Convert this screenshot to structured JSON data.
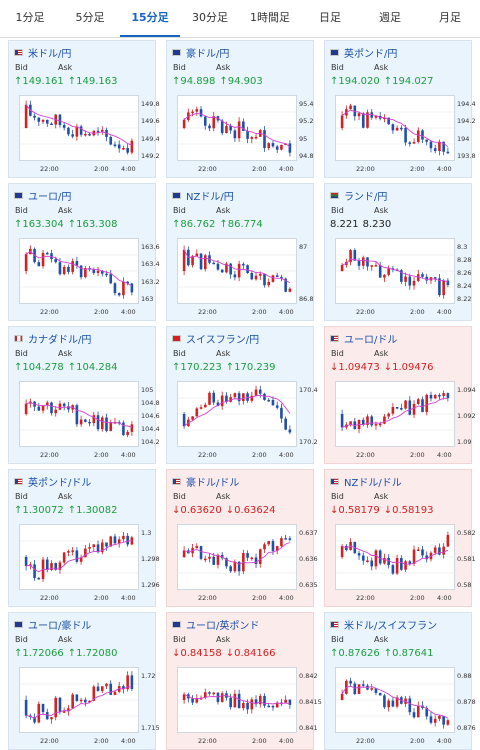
{
  "tabs": [
    {
      "label": "1分足",
      "active": false
    },
    {
      "label": "5分足",
      "active": false
    },
    {
      "label": "15分足",
      "active": true
    },
    {
      "label": "30分足",
      "active": false
    },
    {
      "label": "1時間足",
      "active": false
    },
    {
      "label": "日足",
      "active": false
    },
    {
      "label": "週足",
      "active": false
    },
    {
      "label": "月足",
      "active": false
    }
  ],
  "colors": {
    "up_bg": "#eaf4fd",
    "down_bg": "#fcebeb",
    "candle_up": "#d32020",
    "candle_down": "#1f4fa8",
    "ma_line": "#d640d6",
    "arrow_up": "#1a9e3c",
    "arrow_down": "#d32020",
    "link": "#1b4fa8"
  },
  "cards": [
    {
      "name": "米ドル/円",
      "flag": "us",
      "dir": "up",
      "bid_label": "Bid",
      "ask_label": "Ask",
      "bid": "↑149.161",
      "ask": "↑149.163",
      "x_ticks": [
        "22:00",
        "2:00",
        "4:00"
      ],
      "y_ticks": [
        "149.8",
        "149.6",
        "149.4",
        "149.2"
      ],
      "ylim": [
        149.1,
        149.9
      ],
      "trend": "down"
    },
    {
      "name": "豪ドル/円",
      "flag": "au",
      "dir": "up",
      "bid_label": "Bid",
      "ask_label": "Ask",
      "bid": "↑94.898",
      "ask": "↑94.903",
      "x_ticks": [
        "22:00",
        "2:00",
        "4:00"
      ],
      "y_ticks": [
        "95.4",
        "95.2",
        "95",
        "94.8"
      ],
      "ylim": [
        94.75,
        95.5
      ],
      "trend": "down"
    },
    {
      "name": "英ポンド/円",
      "flag": "gb",
      "dir": "up",
      "bid_label": "Bid",
      "ask_label": "Ask",
      "bid": "↑194.020",
      "ask": "↑194.027",
      "x_ticks": [
        "22:00",
        "2:00",
        "4:00"
      ],
      "y_ticks": [
        "194.4",
        "194.2",
        "194",
        "193.8"
      ],
      "ylim": [
        193.75,
        194.5
      ],
      "trend": "down"
    },
    {
      "name": "ユーロ/円",
      "flag": "eu",
      "dir": "up",
      "bid_label": "Bid",
      "ask_label": "Ask",
      "bid": "↑163.304",
      "ask": "↑163.308",
      "x_ticks": [
        "22:00",
        "2:00",
        "4:00"
      ],
      "y_ticks": [
        "163.6",
        "163.4",
        "163.2",
        "163"
      ],
      "ylim": [
        162.95,
        163.7
      ],
      "trend": "down"
    },
    {
      "name": "NZドル/円",
      "flag": "nz",
      "dir": "up",
      "bid_label": "Bid",
      "ask_label": "Ask",
      "bid": "↑86.762",
      "ask": "↑86.774",
      "x_ticks": [
        "22:00",
        "2:00",
        "4:00"
      ],
      "y_ticks": [
        "87",
        "86.8"
      ],
      "ylim": [
        86.7,
        87.2
      ],
      "trend": "down"
    },
    {
      "name": "ランド/円",
      "flag": "za",
      "dir": "none",
      "bid_label": "Bid",
      "ask_label": "Ask",
      "bid": "8.221",
      "ask": "8.230",
      "x_ticks": [
        "22:00",
        "2:00",
        "4:00"
      ],
      "y_ticks": [
        "8.3",
        "8.28",
        "8.26",
        "8.24",
        "8.22"
      ],
      "ylim": [
        8.215,
        8.305
      ],
      "trend": "down"
    },
    {
      "name": "カナダドル/円",
      "flag": "ca",
      "dir": "up",
      "bid_label": "Bid",
      "ask_label": "Ask",
      "bid": "↑104.278",
      "ask": "↑104.284",
      "x_ticks": [
        "22:00",
        "2:00",
        "4:00"
      ],
      "y_ticks": [
        "105",
        "104.8",
        "104.6",
        "104.4",
        "104.2"
      ],
      "ylim": [
        104.15,
        105.05
      ],
      "trend": "down"
    },
    {
      "name": "スイスフラン/円",
      "flag": "ch",
      "dir": "up",
      "bid_label": "Bid",
      "ask_label": "Ask",
      "bid": "↑170.223",
      "ask": "↑170.239",
      "x_ticks": [
        "22:00",
        "2:00",
        "4:00"
      ],
      "y_ticks": [
        "170.4",
        "170.2"
      ],
      "ylim": [
        169.95,
        170.6
      ],
      "trend": "updown"
    },
    {
      "name": "ユーロ/ドル",
      "flag": "us",
      "dir": "down",
      "bid_label": "Bid",
      "ask_label": "Ask",
      "bid": "↓1.09473",
      "ask": "↓1.09476",
      "x_ticks": [
        "22:00",
        "2:00",
        "4:00"
      ],
      "y_ticks": [
        "1.094",
        "1.092",
        "1.09"
      ],
      "ylim": [
        1.0895,
        1.0955
      ],
      "trend": "up"
    },
    {
      "name": "英ポンド/ドル",
      "flag": "us",
      "dir": "up",
      "bid_label": "Bid",
      "ask_label": "Ask",
      "bid": "↑1.30072",
      "ask": "↑1.30082",
      "x_ticks": [
        "22:00",
        "2:00",
        "4:00"
      ],
      "y_ticks": [
        "1.3",
        "1.298",
        "1.296"
      ],
      "ylim": [
        1.2955,
        1.3015
      ],
      "trend": "up"
    },
    {
      "name": "豪ドル/ドル",
      "flag": "us",
      "dir": "down",
      "bid_label": "Bid",
      "ask_label": "Ask",
      "bid": "↓0.63620",
      "ask": "↓0.63624",
      "x_ticks": [
        "22:00",
        "2:00",
        "4:00"
      ],
      "y_ticks": [
        "0.637",
        "0.636",
        "0.635"
      ],
      "ylim": [
        0.6345,
        0.6377
      ],
      "trend": "downup"
    },
    {
      "name": "NZドル/ドル",
      "flag": "us",
      "dir": "down",
      "bid_label": "Bid",
      "ask_label": "Ask",
      "bid": "↓0.58179",
      "ask": "↓0.58193",
      "x_ticks": [
        "22:00",
        "2:00",
        "4:00"
      ],
      "y_ticks": [
        "0.582",
        "0.581",
        "0.58"
      ],
      "ylim": [
        0.5797,
        0.5824
      ],
      "trend": "downup"
    },
    {
      "name": "ユーロ/豪ドル",
      "flag": "eu",
      "dir": "up",
      "bid_label": "Bid",
      "ask_label": "Ask",
      "bid": "↑1.72066",
      "ask": "↑1.72080",
      "x_ticks": [
        "22:00",
        "2:00",
        "4:00"
      ],
      "y_ticks": [
        "1.72",
        "1.715"
      ],
      "ylim": [
        1.711,
        1.7225
      ],
      "trend": "up"
    },
    {
      "name": "ユーロ/英ポンド",
      "flag": "eu",
      "dir": "down",
      "bid_label": "Bid",
      "ask_label": "Ask",
      "bid": "↓0.84158",
      "ask": "↓0.84166",
      "x_ticks": [
        "22:00",
        "2:00",
        "4:00"
      ],
      "y_ticks": [
        "0.842",
        "0.8415",
        "0.841"
      ],
      "ylim": [
        0.8407,
        0.8423
      ],
      "trend": "flat"
    },
    {
      "name": "米ドル/スイスフラン",
      "flag": "us",
      "dir": "up",
      "bid_label": "Bid",
      "ask_label": "Ask",
      "bid": "↑0.87626",
      "ask": "↑0.87641",
      "x_ticks": [
        "22:00",
        "2:00",
        "4:00"
      ],
      "y_ticks": [
        "0.88",
        "0.878",
        "0.876"
      ],
      "ylim": [
        0.8756,
        0.8806
      ],
      "trend": "down"
    }
  ]
}
